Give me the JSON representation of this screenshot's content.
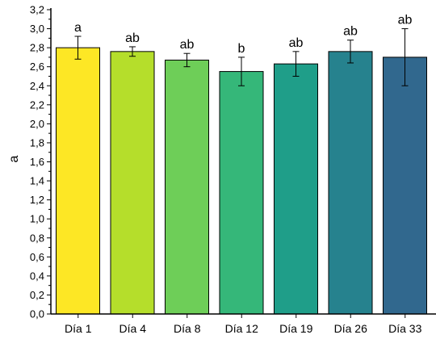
{
  "chart_data": {
    "type": "bar",
    "title": "",
    "xlabel": "",
    "ylabel": "a",
    "ylim": [
      0,
      3.2
    ],
    "ytick_step": 0.2,
    "ytick_labels": [
      "0,0",
      "0,2",
      "0,4",
      "0,6",
      "0,8",
      "1,0",
      "1,2",
      "1,4",
      "1,6",
      "1,8",
      "2,0",
      "2,2",
      "2,4",
      "2,6",
      "2,8",
      "3,0",
      "3,2"
    ],
    "grid": false,
    "legend": "none",
    "categories": [
      "Día 1",
      "Día 4",
      "Día 8",
      "Día 12",
      "Día 19",
      "Día 26",
      "Día 33"
    ],
    "values": [
      2.8,
      2.76,
      2.67,
      2.55,
      2.63,
      2.76,
      2.7
    ],
    "errors": [
      0.12,
      0.05,
      0.07,
      0.15,
      0.13,
      0.12,
      0.3
    ],
    "significance": [
      "a",
      "ab",
      "ab",
      "b",
      "ab",
      "ab",
      "ab"
    ],
    "colors": [
      "#fde725",
      "#b5de2b",
      "#6ece58",
      "#35b779",
      "#1f9e89",
      "#26828e",
      "#31688e"
    ]
  }
}
